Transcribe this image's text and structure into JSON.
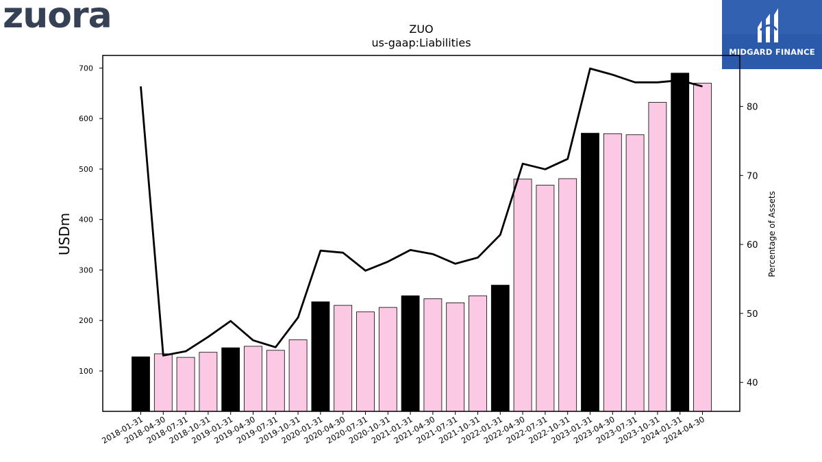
{
  "branding": {
    "company_logo_text": "zuora",
    "company_logo_color": "#364156",
    "sponsor_logo_text": "MIDGARD FINANCE",
    "sponsor_bg_color": "#2b5aaa"
  },
  "chart_data": {
    "type": "bar",
    "title": "ZUO",
    "subtitle": "us-gaap:Liabilities",
    "ylabel": "USDm",
    "y2label": "Percentage of Assets",
    "ylim": [
      20,
      725
    ],
    "y2lim": [
      35.8,
      87.4
    ],
    "yticks": [
      "100",
      "200",
      "300",
      "400",
      "500",
      "600",
      "700"
    ],
    "y2ticks": [
      "40",
      "50",
      "60",
      "70",
      "80"
    ],
    "categories": [
      "2018-01-31",
      "2018-04-30",
      "2018-07-31",
      "2018-10-31",
      "2019-01-31",
      "2019-04-30",
      "2019-07-31",
      "2019-10-31",
      "2020-01-31",
      "2020-04-30",
      "2020-07-31",
      "2020-10-31",
      "2021-01-31",
      "2021-04-30",
      "2021-07-31",
      "2021-10-31",
      "2022-01-31",
      "2022-04-30",
      "2022-07-31",
      "2022-10-31",
      "2023-01-31",
      "2023-04-30",
      "2023-07-31",
      "2023-10-31",
      "2024-01-31",
      "2024-04-30"
    ],
    "series": [
      {
        "kind": "bar",
        "values": [
          128,
          134,
          127,
          137,
          146,
          149,
          141,
          162,
          237,
          230,
          217,
          226,
          249,
          243,
          235,
          249,
          270,
          480,
          468,
          481,
          571,
          570,
          568,
          632,
          690,
          670
        ],
        "fiscal_year_end_color": "#000000",
        "quarter_color": "#fbc9e3"
      },
      {
        "kind": "line",
        "axis": "right",
        "color": "#000000",
        "values": [
          82.9,
          43.9,
          44.5,
          46.6,
          48.9,
          46.1,
          45.1,
          49.4,
          59.1,
          58.8,
          56.2,
          57.5,
          59.2,
          58.6,
          57.2,
          58.1,
          61.4,
          71.7,
          70.9,
          72.4,
          85.5,
          84.6,
          83.5,
          83.5,
          83.8,
          82.9
        ]
      }
    ],
    "grid": false,
    "legend": "none"
  }
}
